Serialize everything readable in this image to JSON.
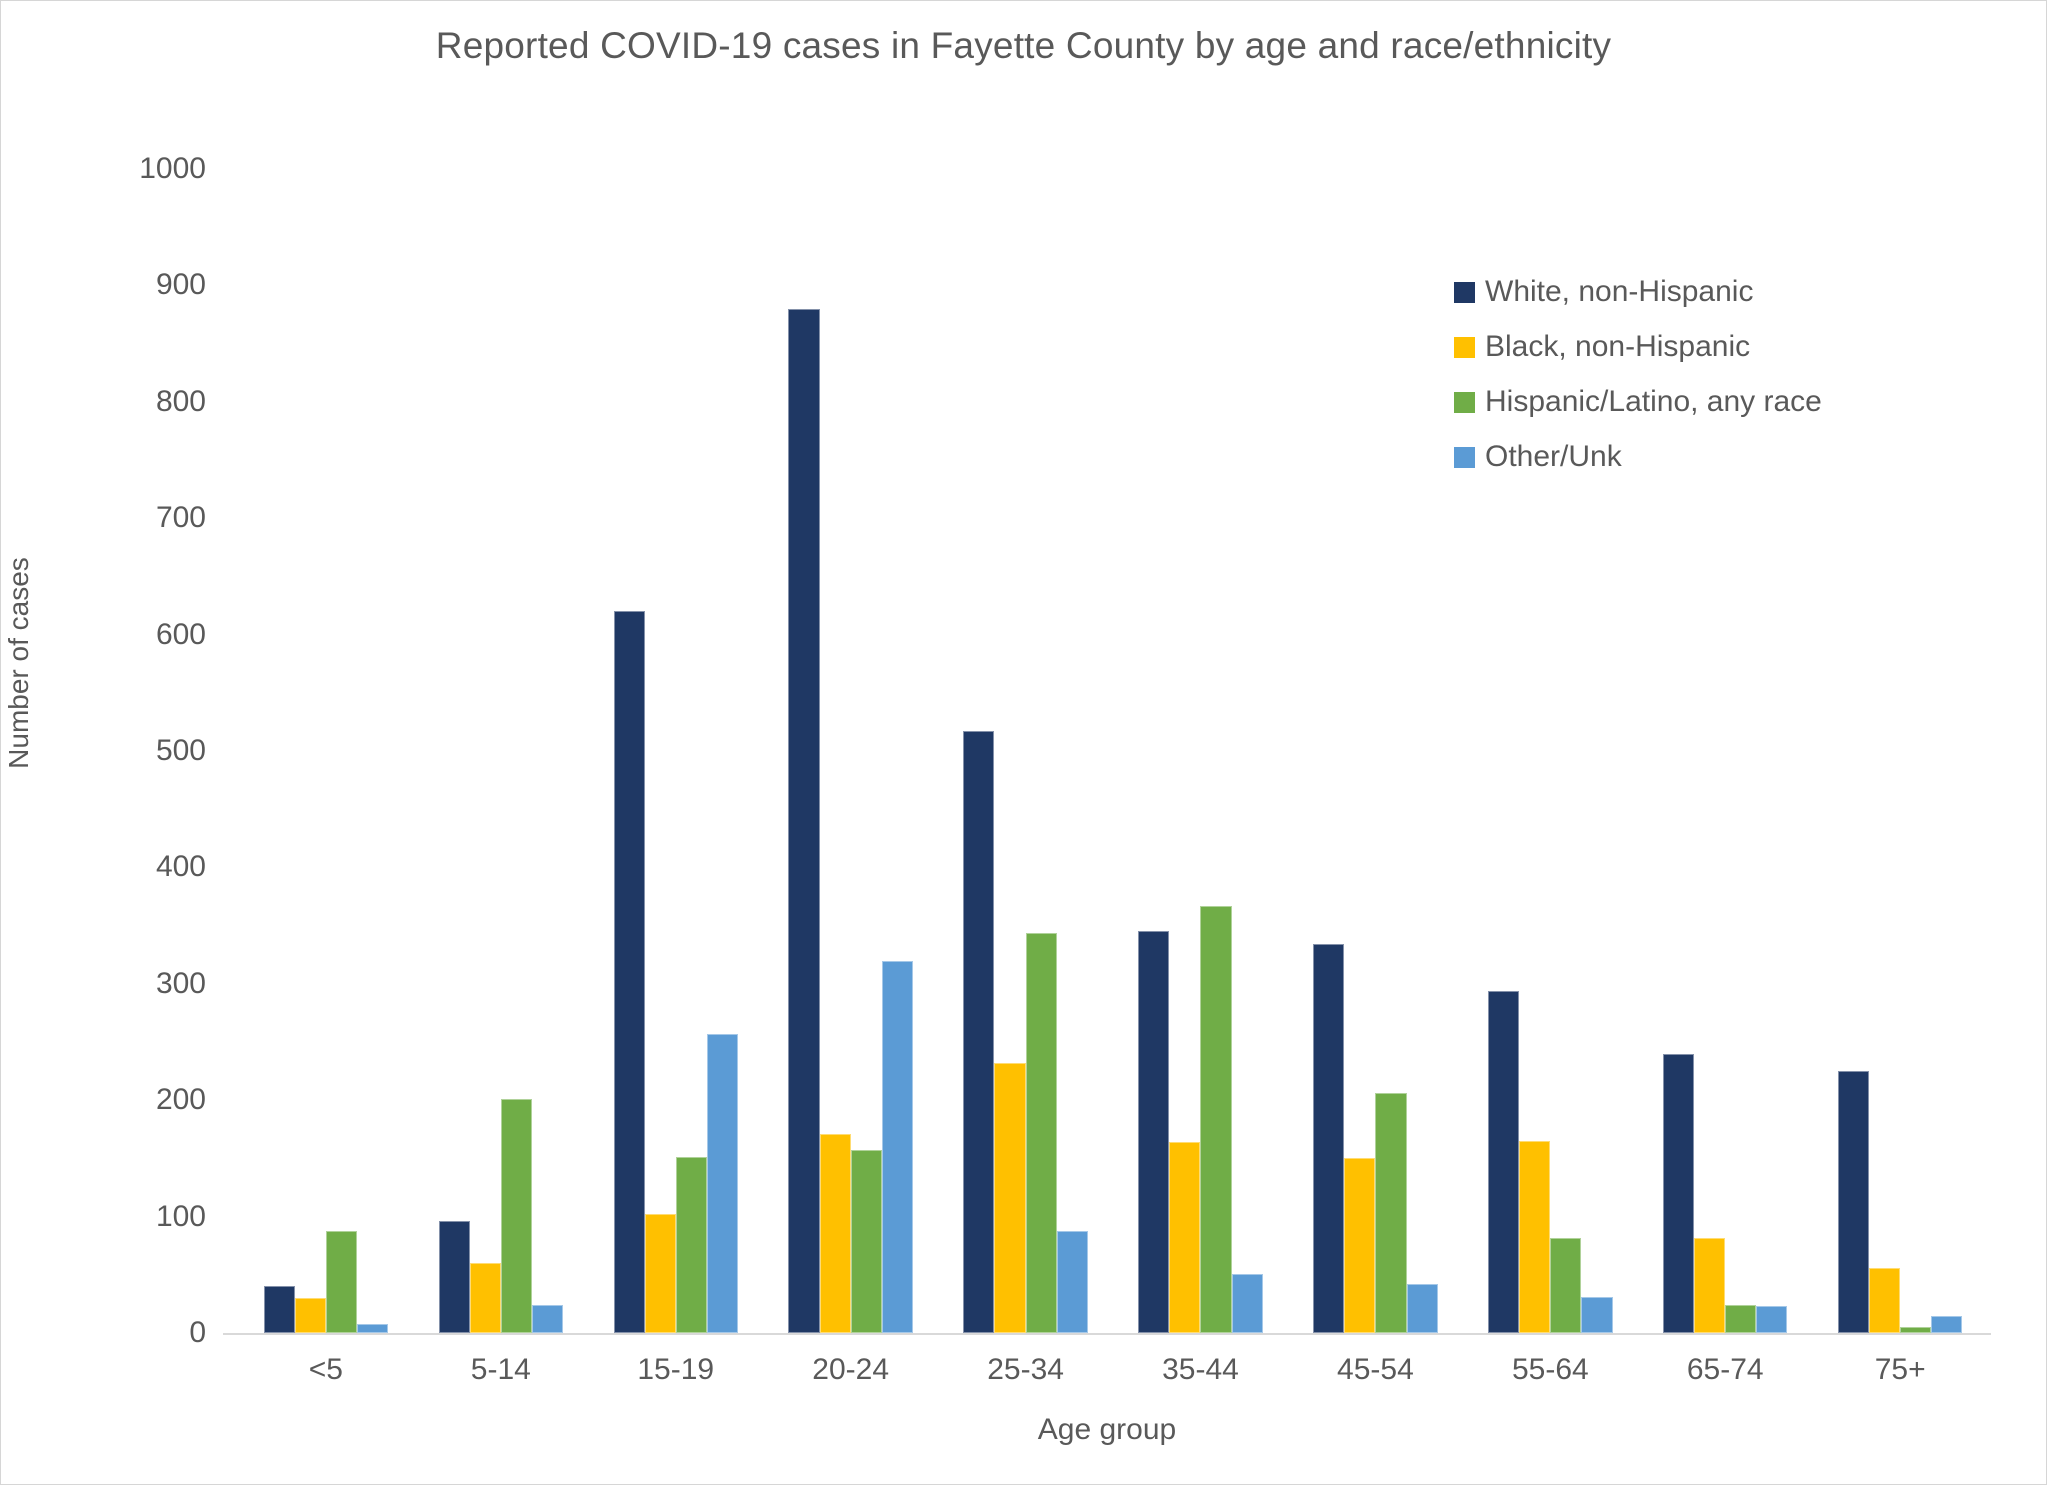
{
  "title": "Reported COVID-19 cases in Fayette County by age and race/ethnicity",
  "colors": {
    "white_non_hispanic": "#1F3864",
    "black_non_hispanic": "#FFC000",
    "hispanic_latino": "#70AD47",
    "other_unk": "#5B9BD5",
    "text": "#595959",
    "axis_line": "#D9D9D9"
  },
  "chart_data": {
    "type": "bar",
    "title": "Reported COVID-19 cases in Fayette County by age and race/ethnicity",
    "xlabel": "Age group",
    "ylabel": "Number of cases",
    "ylim": [
      0,
      1000
    ],
    "yticks": [
      0,
      100,
      200,
      300,
      400,
      500,
      600,
      700,
      800,
      900,
      1000
    ],
    "grid": false,
    "legend_position": "upper-right-inside",
    "categories": [
      "<5",
      "5-14",
      "15-19",
      "20-24",
      "25-34",
      "35-44",
      "45-54",
      "55-64",
      "65-74",
      "75+"
    ],
    "series": [
      {
        "name": "White, non-Hispanic",
        "color": "#1F3864",
        "values": [
          40,
          96,
          620,
          880,
          517,
          345,
          334,
          294,
          240,
          225
        ]
      },
      {
        "name": "Black, non-Hispanic",
        "color": "#FFC000",
        "values": [
          30,
          60,
          102,
          171,
          232,
          164,
          150,
          165,
          82,
          56
        ]
      },
      {
        "name": "Hispanic/Latino, any race",
        "color": "#70AD47",
        "values": [
          88,
          201,
          151,
          157,
          344,
          367,
          206,
          82,
          24,
          5
        ]
      },
      {
        "name": "Other/Unk",
        "color": "#5B9BD5",
        "values": [
          8,
          24,
          257,
          320,
          88,
          51,
          42,
          31,
          23,
          15
        ]
      }
    ]
  }
}
